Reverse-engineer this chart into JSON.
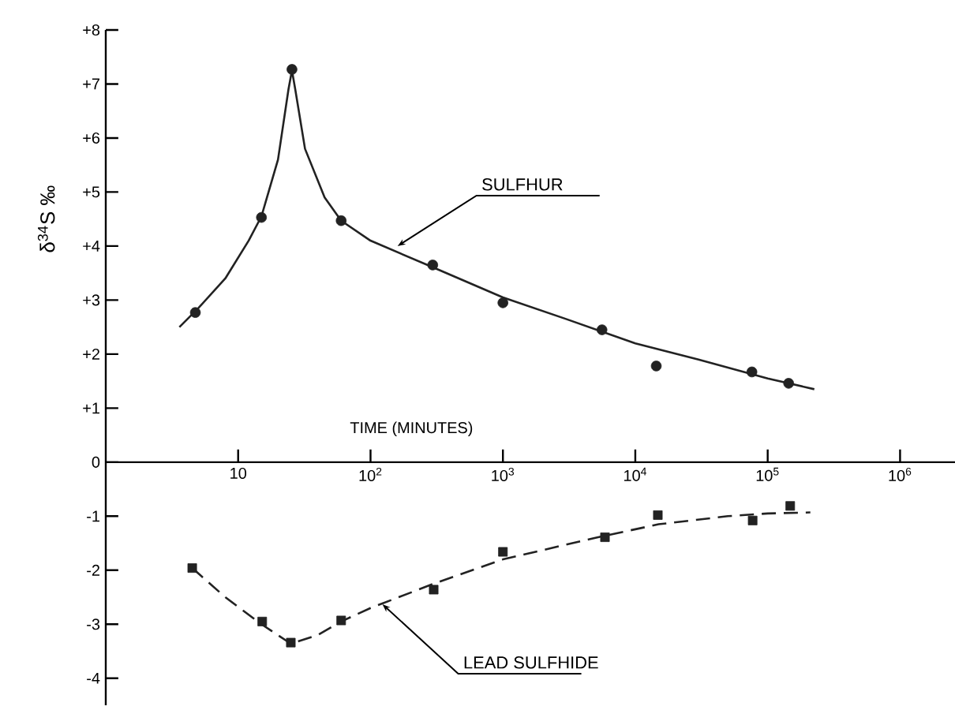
{
  "chart_data": {
    "type": "scatter",
    "xlabel": "TIME (MINUTES)",
    "ylabel": "δ$^{34}$S ‰",
    "log": "x",
    "xlim": [
      1,
      2600000
    ],
    "ylim": [
      -4.5,
      8
    ],
    "xticks": [
      10,
      {
        "value": 100,
        "label": "10$^{2}$"
      },
      {
        "value": 1000,
        "label": "10$^{3}$"
      },
      {
        "value": 10000,
        "label": "10$^{4}$"
      },
      {
        "value": 100000,
        "label": "10$^{5}$"
      },
      {
        "value": 1000000,
        "label": "10$^{6}$"
      }
    ],
    "yticks": [
      {
        "value": 8,
        "label": "+8"
      },
      {
        "value": 7,
        "label": "+7"
      },
      {
        "value": 6,
        "label": "+6"
      },
      {
        "value": 5,
        "label": "+5"
      },
      {
        "value": 4,
        "label": "+4"
      },
      {
        "value": 3,
        "label": "+3"
      },
      {
        "value": 2,
        "label": "+2"
      },
      {
        "value": 1,
        "label": "+1"
      },
      0,
      -1,
      -2,
      -3,
      -4
    ],
    "series": [
      {
        "marker": "circle",
        "color": "#222222",
        "x": [
          4.75,
          15,
          25.5,
          60,
          295,
          1000,
          5600,
          14400,
          76000,
          144000
        ],
        "values": [
          2.77,
          4.53,
          7.27,
          4.47,
          3.65,
          2.95,
          2.45,
          1.78,
          1.67,
          1.46
        ]
      },
      {
        "type": "line",
        "marker": "none",
        "line_style": "solid",
        "color": "#222222",
        "x": [
          3.6,
          5,
          8,
          12,
          15,
          20,
          24,
          25.5,
          27,
          32,
          45,
          60,
          100,
          300,
          1000,
          3000,
          10000,
          30000,
          100000,
          225000
        ],
        "values": [
          2.5,
          2.85,
          3.4,
          4.1,
          4.55,
          5.6,
          6.9,
          7.25,
          6.9,
          5.8,
          4.9,
          4.47,
          4.1,
          3.6,
          3.05,
          2.65,
          2.2,
          1.9,
          1.55,
          1.35
        ]
      },
      {
        "marker": "square",
        "color": "#222222",
        "x": [
          4.5,
          15.2,
          25,
          60,
          300,
          1000,
          5900,
          14800,
          77000,
          148000
        ],
        "values": [
          -1.96,
          -2.95,
          -3.34,
          -2.93,
          -2.36,
          -1.66,
          -1.39,
          -0.98,
          -1.08,
          -0.81
        ]
      },
      {
        "type": "line",
        "marker": "none",
        "line_style": "dashed",
        "color": "#222222",
        "x": [
          4.5,
          8,
          15,
          25,
          40,
          60,
          100,
          300,
          1000,
          5000,
          15000,
          50000,
          100000,
          210000
        ],
        "values": [
          -1.96,
          -2.5,
          -3.0,
          -3.36,
          -3.2,
          -2.95,
          -2.7,
          -2.25,
          -1.8,
          -1.4,
          -1.15,
          -1.0,
          -0.95,
          -0.93
        ]
      }
    ],
    "annotations": [
      {
        "text": "SULFHUR",
        "x": 160,
        "y": 4.0
      },
      {
        "text": "LEAD SULFHIDE",
        "x": 123,
        "y": -2.63
      }
    ]
  }
}
